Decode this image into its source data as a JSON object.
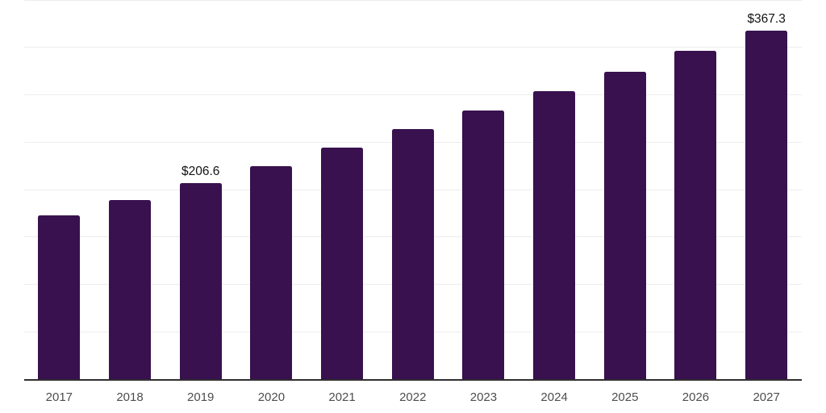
{
  "chart_data": {
    "type": "bar",
    "title": "",
    "xlabel": "",
    "ylabel": "",
    "categories": [
      "2017",
      "2018",
      "2019",
      "2020",
      "2021",
      "2022",
      "2023",
      "2024",
      "2025",
      "2026",
      "2027"
    ],
    "values": [
      173.0,
      188.9,
      206.6,
      224.8,
      244.0,
      263.6,
      283.2,
      303.7,
      324.6,
      346.1,
      367.3
    ],
    "data_labels": {
      "2019": "$206.6",
      "2027": "$367.3"
    },
    "currency_prefix": "$",
    "ylim": [
      0,
      400
    ],
    "grid": true,
    "grid_step": 50,
    "legend": false
  },
  "style": {
    "background_color": "#ffffff",
    "bar_color": "#38114e",
    "axis_line_color": "#2f2f2f",
    "gridline_color": "#ededed",
    "value_label_color": "#121212",
    "tick_label_color": "#4d4d4d"
  }
}
